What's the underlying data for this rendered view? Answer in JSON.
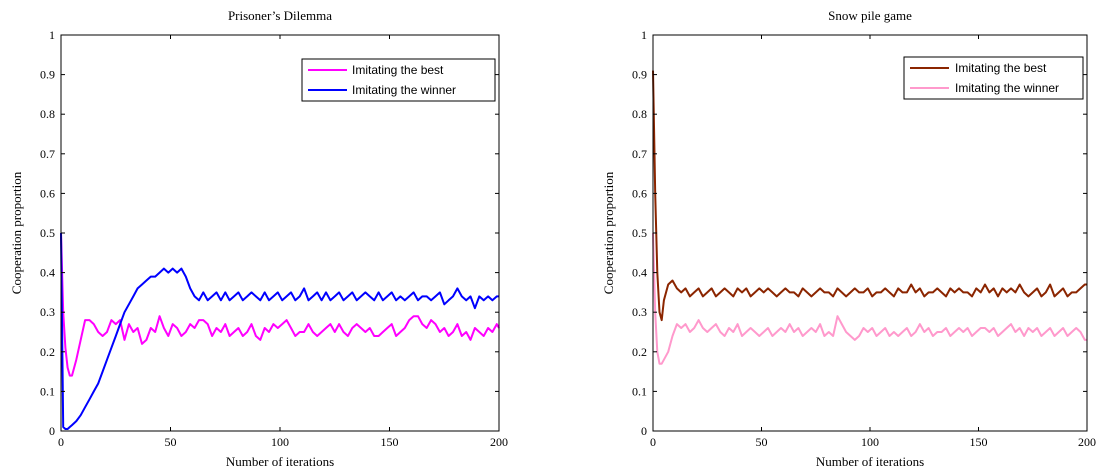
{
  "chart_data": [
    {
      "type": "line",
      "title": "Prisoner’s Dilemma",
      "xlabel": "Number of iterations",
      "ylabel": "Cooperation proportion",
      "xlim": [
        0,
        200
      ],
      "ylim": [
        0,
        1
      ],
      "xticks": [
        0,
        50,
        100,
        150,
        200
      ],
      "yticks": [
        0,
        0.1,
        0.2,
        0.3,
        0.4,
        0.5,
        0.6,
        0.7,
        0.8,
        0.9,
        1
      ],
      "xtick_labels": [
        "0",
        "50",
        "100",
        "150",
        "200"
      ],
      "ytick_labels": [
        "0",
        "0.1",
        "0.2",
        "0.3",
        "0.4",
        "0.5",
        "0.6",
        "0.7",
        "0.8",
        "0.9",
        "1"
      ],
      "grid": false,
      "legend_position": "top-right",
      "series": [
        {
          "name": "Imitating the best",
          "color": "#ff00ff",
          "x": [
            0,
            1,
            2,
            3,
            4,
            5,
            7,
            9,
            11,
            13,
            15,
            17,
            19,
            21,
            23,
            25,
            27,
            29,
            31,
            33,
            35,
            37,
            39,
            41,
            43,
            45,
            47,
            49,
            51,
            53,
            55,
            57,
            59,
            61,
            63,
            65,
            67,
            69,
            71,
            73,
            75,
            77,
            79,
            81,
            83,
            85,
            87,
            89,
            91,
            93,
            95,
            97,
            99,
            101,
            103,
            105,
            107,
            109,
            111,
            113,
            115,
            117,
            119,
            121,
            123,
            125,
            127,
            129,
            131,
            133,
            135,
            137,
            139,
            141,
            143,
            145,
            147,
            149,
            151,
            153,
            155,
            157,
            159,
            161,
            163,
            165,
            167,
            169,
            171,
            173,
            175,
            177,
            179,
            181,
            183,
            185,
            187,
            189,
            191,
            193,
            195,
            197,
            199,
            200
          ],
          "y": [
            0.5,
            0.3,
            0.21,
            0.16,
            0.14,
            0.14,
            0.18,
            0.23,
            0.28,
            0.28,
            0.27,
            0.25,
            0.24,
            0.25,
            0.28,
            0.27,
            0.28,
            0.23,
            0.27,
            0.25,
            0.26,
            0.22,
            0.23,
            0.26,
            0.25,
            0.29,
            0.26,
            0.24,
            0.27,
            0.26,
            0.24,
            0.25,
            0.27,
            0.26,
            0.28,
            0.28,
            0.27,
            0.24,
            0.26,
            0.25,
            0.27,
            0.24,
            0.25,
            0.26,
            0.24,
            0.25,
            0.27,
            0.24,
            0.23,
            0.26,
            0.25,
            0.27,
            0.26,
            0.27,
            0.28,
            0.26,
            0.24,
            0.25,
            0.25,
            0.27,
            0.25,
            0.24,
            0.25,
            0.26,
            0.27,
            0.25,
            0.27,
            0.25,
            0.24,
            0.26,
            0.27,
            0.26,
            0.25,
            0.26,
            0.24,
            0.24,
            0.25,
            0.26,
            0.27,
            0.24,
            0.25,
            0.26,
            0.28,
            0.29,
            0.29,
            0.27,
            0.26,
            0.28,
            0.27,
            0.25,
            0.26,
            0.24,
            0.25,
            0.27,
            0.24,
            0.25,
            0.23,
            0.26,
            0.25,
            0.24,
            0.26,
            0.25,
            0.27,
            0.26
          ]
        },
        {
          "name": "Imitating the winner",
          "color": "#0000ff",
          "x": [
            0,
            1,
            2,
            3,
            4,
            5,
            7,
            9,
            11,
            13,
            15,
            17,
            19,
            21,
            23,
            25,
            27,
            29,
            31,
            33,
            35,
            37,
            39,
            41,
            43,
            45,
            47,
            49,
            51,
            53,
            55,
            57,
            59,
            61,
            63,
            65,
            67,
            69,
            71,
            73,
            75,
            77,
            79,
            81,
            83,
            85,
            87,
            89,
            91,
            93,
            95,
            97,
            99,
            101,
            103,
            105,
            107,
            109,
            111,
            113,
            115,
            117,
            119,
            121,
            123,
            125,
            127,
            129,
            131,
            133,
            135,
            137,
            139,
            141,
            143,
            145,
            147,
            149,
            151,
            153,
            155,
            157,
            159,
            161,
            163,
            165,
            167,
            169,
            171,
            173,
            175,
            177,
            179,
            181,
            183,
            185,
            187,
            189,
            191,
            193,
            195,
            197,
            199,
            200
          ],
          "y": [
            0.5,
            0.01,
            0.005,
            0.005,
            0.01,
            0.015,
            0.025,
            0.04,
            0.06,
            0.08,
            0.1,
            0.12,
            0.15,
            0.18,
            0.21,
            0.24,
            0.27,
            0.3,
            0.32,
            0.34,
            0.36,
            0.37,
            0.38,
            0.39,
            0.39,
            0.4,
            0.41,
            0.4,
            0.41,
            0.4,
            0.41,
            0.39,
            0.36,
            0.34,
            0.33,
            0.35,
            0.33,
            0.34,
            0.35,
            0.33,
            0.35,
            0.33,
            0.34,
            0.35,
            0.33,
            0.34,
            0.35,
            0.34,
            0.33,
            0.35,
            0.33,
            0.34,
            0.35,
            0.33,
            0.34,
            0.35,
            0.33,
            0.34,
            0.36,
            0.33,
            0.34,
            0.35,
            0.33,
            0.35,
            0.33,
            0.34,
            0.35,
            0.33,
            0.34,
            0.35,
            0.33,
            0.34,
            0.35,
            0.34,
            0.33,
            0.35,
            0.33,
            0.34,
            0.35,
            0.33,
            0.34,
            0.33,
            0.34,
            0.35,
            0.33,
            0.34,
            0.34,
            0.33,
            0.34,
            0.35,
            0.32,
            0.33,
            0.34,
            0.36,
            0.34,
            0.33,
            0.34,
            0.31,
            0.34,
            0.33,
            0.34,
            0.33,
            0.34,
            0.34
          ]
        }
      ]
    },
    {
      "type": "line",
      "title": "Snow pile game",
      "xlabel": "Number of iterations",
      "ylabel": "Cooperation proportion",
      "xlim": [
        0,
        200
      ],
      "ylim": [
        0,
        1
      ],
      "xticks": [
        0,
        50,
        100,
        150,
        200
      ],
      "yticks": [
        0,
        0.1,
        0.2,
        0.3,
        0.4,
        0.5,
        0.6,
        0.7,
        0.8,
        0.9,
        1
      ],
      "xtick_labels": [
        "0",
        "50",
        "100",
        "150",
        "200"
      ],
      "ytick_labels": [
        "0",
        "0.1",
        "0.2",
        "0.3",
        "0.4",
        "0.5",
        "0.6",
        "0.7",
        "0.8",
        "0.9",
        "1"
      ],
      "grid": false,
      "legend_position": "top-right",
      "series": [
        {
          "name": "Imitating the best",
          "color": "#8b2500",
          "x": [
            0,
            1,
            2,
            3,
            4,
            5,
            7,
            9,
            11,
            13,
            15,
            17,
            19,
            21,
            23,
            25,
            27,
            29,
            31,
            33,
            35,
            37,
            39,
            41,
            43,
            45,
            47,
            49,
            51,
            53,
            55,
            57,
            59,
            61,
            63,
            65,
            67,
            69,
            71,
            73,
            75,
            77,
            79,
            81,
            83,
            85,
            87,
            89,
            91,
            93,
            95,
            97,
            99,
            101,
            103,
            105,
            107,
            109,
            111,
            113,
            115,
            117,
            119,
            121,
            123,
            125,
            127,
            129,
            131,
            133,
            135,
            137,
            139,
            141,
            143,
            145,
            147,
            149,
            151,
            153,
            155,
            157,
            159,
            161,
            163,
            165,
            167,
            169,
            171,
            173,
            175,
            177,
            179,
            181,
            183,
            185,
            187,
            189,
            191,
            193,
            195,
            197,
            199,
            200
          ],
          "y": [
            0.91,
            0.6,
            0.4,
            0.3,
            0.28,
            0.33,
            0.37,
            0.38,
            0.36,
            0.35,
            0.36,
            0.34,
            0.35,
            0.36,
            0.34,
            0.35,
            0.36,
            0.34,
            0.35,
            0.36,
            0.35,
            0.34,
            0.36,
            0.35,
            0.36,
            0.34,
            0.35,
            0.36,
            0.35,
            0.36,
            0.35,
            0.34,
            0.35,
            0.36,
            0.35,
            0.35,
            0.34,
            0.36,
            0.35,
            0.34,
            0.35,
            0.36,
            0.35,
            0.35,
            0.34,
            0.36,
            0.35,
            0.34,
            0.35,
            0.36,
            0.35,
            0.35,
            0.36,
            0.34,
            0.35,
            0.35,
            0.36,
            0.35,
            0.34,
            0.36,
            0.35,
            0.35,
            0.37,
            0.35,
            0.36,
            0.34,
            0.35,
            0.35,
            0.36,
            0.35,
            0.34,
            0.36,
            0.35,
            0.36,
            0.35,
            0.35,
            0.34,
            0.36,
            0.35,
            0.37,
            0.35,
            0.36,
            0.34,
            0.36,
            0.35,
            0.36,
            0.35,
            0.37,
            0.35,
            0.34,
            0.35,
            0.36,
            0.34,
            0.35,
            0.37,
            0.34,
            0.35,
            0.36,
            0.34,
            0.35,
            0.35,
            0.36,
            0.37,
            0.37
          ]
        },
        {
          "name": "Imitating the winner",
          "color": "#ff99cc",
          "x": [
            0,
            1,
            2,
            3,
            4,
            5,
            7,
            9,
            11,
            13,
            15,
            17,
            19,
            21,
            23,
            25,
            27,
            29,
            31,
            33,
            35,
            37,
            39,
            41,
            43,
            45,
            47,
            49,
            51,
            53,
            55,
            57,
            59,
            61,
            63,
            65,
            67,
            69,
            71,
            73,
            75,
            77,
            79,
            81,
            83,
            85,
            87,
            89,
            91,
            93,
            95,
            97,
            99,
            101,
            103,
            105,
            107,
            109,
            111,
            113,
            115,
            117,
            119,
            121,
            123,
            125,
            127,
            129,
            131,
            133,
            135,
            137,
            139,
            141,
            143,
            145,
            147,
            149,
            151,
            153,
            155,
            157,
            159,
            161,
            163,
            165,
            167,
            169,
            171,
            173,
            175,
            177,
            179,
            181,
            183,
            185,
            187,
            189,
            191,
            193,
            195,
            197,
            199,
            200
          ],
          "y": [
            0.5,
            0.3,
            0.2,
            0.17,
            0.17,
            0.18,
            0.2,
            0.24,
            0.27,
            0.26,
            0.27,
            0.25,
            0.26,
            0.28,
            0.26,
            0.25,
            0.26,
            0.27,
            0.25,
            0.24,
            0.26,
            0.25,
            0.27,
            0.24,
            0.25,
            0.26,
            0.25,
            0.24,
            0.25,
            0.26,
            0.24,
            0.25,
            0.26,
            0.25,
            0.27,
            0.25,
            0.26,
            0.24,
            0.25,
            0.26,
            0.25,
            0.27,
            0.24,
            0.25,
            0.24,
            0.29,
            0.27,
            0.25,
            0.24,
            0.23,
            0.24,
            0.26,
            0.25,
            0.26,
            0.24,
            0.25,
            0.26,
            0.24,
            0.25,
            0.24,
            0.25,
            0.26,
            0.24,
            0.25,
            0.27,
            0.25,
            0.26,
            0.24,
            0.25,
            0.25,
            0.26,
            0.24,
            0.25,
            0.26,
            0.25,
            0.26,
            0.24,
            0.25,
            0.26,
            0.26,
            0.25,
            0.26,
            0.24,
            0.25,
            0.26,
            0.27,
            0.25,
            0.26,
            0.24,
            0.26,
            0.25,
            0.26,
            0.24,
            0.25,
            0.26,
            0.24,
            0.25,
            0.26,
            0.24,
            0.25,
            0.26,
            0.25,
            0.23,
            0.23
          ]
        }
      ]
    }
  ]
}
